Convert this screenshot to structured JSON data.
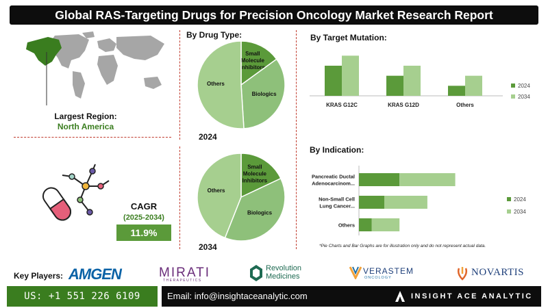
{
  "title": "Global RAS-Targeting Drugs for Precision Oncology Market Research Report",
  "region": {
    "label": "Largest Region:",
    "value": "North America"
  },
  "cagr": {
    "label": "CAGR",
    "period": "(2025-2034)",
    "value": "11.9%"
  },
  "colors": {
    "dark_green": "#5b9a3a",
    "light_green": "#a6cf8f",
    "mid_green": "#8ec07a",
    "accent": "#3a7d1f",
    "divider": "#c0392b"
  },
  "chart_data": [
    {
      "type": "pie",
      "title": "By Drug Type:",
      "year_label": "2024",
      "slices": [
        {
          "label": "Small Molecule Inhibitors",
          "value": 15
        },
        {
          "label": "Biologics",
          "value": 34
        },
        {
          "label": "Others",
          "value": 51
        }
      ]
    },
    {
      "type": "pie",
      "title": "",
      "year_label": "2034",
      "slices": [
        {
          "label": "Small Molecule Inhibitors",
          "value": 18
        },
        {
          "label": "Biologics",
          "value": 38
        },
        {
          "label": "Others",
          "value": 44
        }
      ]
    },
    {
      "type": "bar",
      "title": "By Target Mutation:",
      "categories": [
        "KRAS G12C",
        "KRAS G12D",
        "Others"
      ],
      "series": [
        {
          "name": "2024",
          "values": [
            3.0,
            2.0,
            1.0
          ]
        },
        {
          "name": "2034",
          "values": [
            4.0,
            3.0,
            2.0
          ]
        }
      ]
    },
    {
      "type": "bar",
      "orientation": "horizontal",
      "title": "By  Indication:",
      "categories": [
        "Pancreatic Ductal Adenocarcinom...",
        "Non-Small Cell Lung Cancer...",
        "Others"
      ],
      "series": [
        {
          "name": "2024",
          "values": [
            1.6,
            1.0,
            0.5
          ]
        },
        {
          "name": "2034",
          "values": [
            2.2,
            1.7,
            1.1
          ]
        }
      ]
    }
  ],
  "note": "*Pie Charts and Bar Graphs are for illustration only and do not represent actual data.",
  "key_players_label": "Key Players:",
  "logos": {
    "amgen": "AMGEN",
    "mirati": "MIRATI",
    "mirati_sub": "THERAPEUTICS",
    "revolution_1": "Revolution",
    "revolution_2": "Medicines",
    "verastem": "VERASTEM",
    "verastem_sub": "ONCOLOGY",
    "novartis": "NOVARTIS"
  },
  "footer": {
    "phone": "US: +1 551 226 6109",
    "email": "Email: info@insightaceanalytic.com",
    "brand": "INSIGHT ACE ANALYTIC"
  }
}
